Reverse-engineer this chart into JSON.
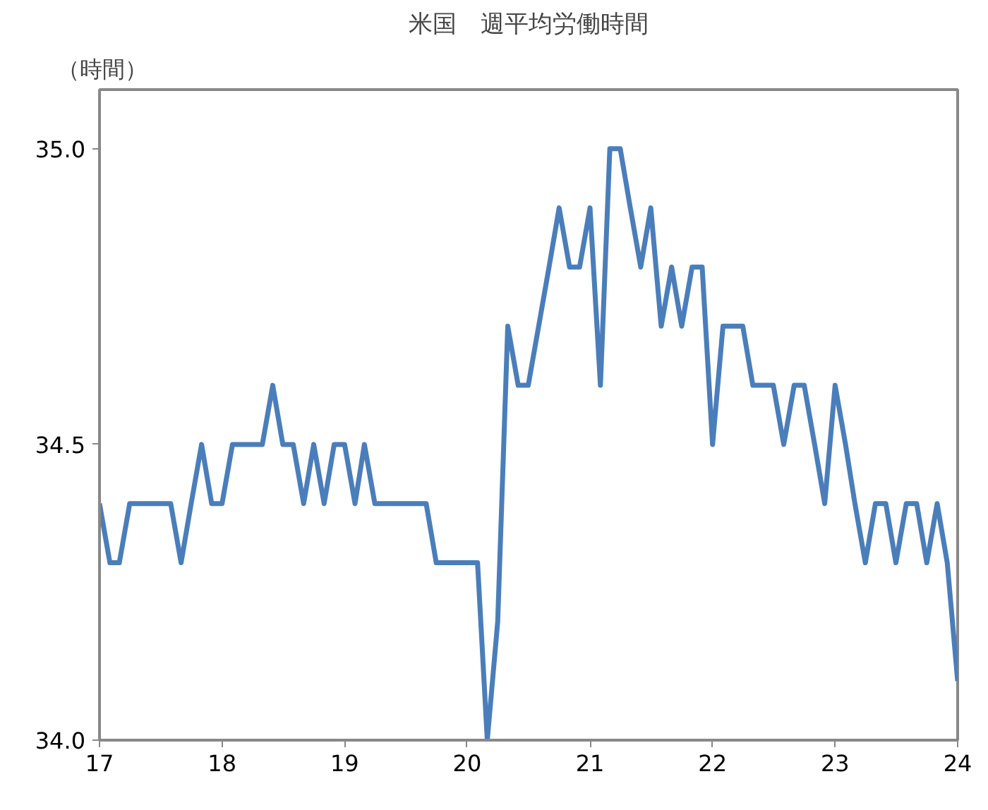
{
  "chart_data": {
    "type": "line",
    "title": "米国　週平均労働時間",
    "ylabel": "（時間）",
    "x": [
      "2017-01",
      "2017-02",
      "2017-03",
      "2017-04",
      "2017-05",
      "2017-06",
      "2017-07",
      "2017-08",
      "2017-09",
      "2017-10",
      "2017-11",
      "2017-12",
      "2018-01",
      "2018-02",
      "2018-03",
      "2018-04",
      "2018-05",
      "2018-06",
      "2018-07",
      "2018-08",
      "2018-09",
      "2018-10",
      "2018-11",
      "2018-12",
      "2019-01",
      "2019-02",
      "2019-03",
      "2019-04",
      "2019-05",
      "2019-06",
      "2019-07",
      "2019-08",
      "2019-09",
      "2019-10",
      "2019-11",
      "2019-12",
      "2020-01",
      "2020-02",
      "2020-03",
      "2020-04",
      "2020-05",
      "2020-06",
      "2020-07",
      "2020-08",
      "2020-09",
      "2020-10",
      "2020-11",
      "2020-12",
      "2021-01",
      "2021-02",
      "2021-03",
      "2021-04",
      "2021-05",
      "2021-06",
      "2021-07",
      "2021-08",
      "2021-09",
      "2021-10",
      "2021-11",
      "2021-12",
      "2022-01",
      "2022-02",
      "2022-03",
      "2022-04",
      "2022-05",
      "2022-06",
      "2022-07",
      "2022-08",
      "2022-09",
      "2022-10",
      "2022-11",
      "2022-12",
      "2023-01",
      "2023-02",
      "2023-03",
      "2023-04",
      "2023-05",
      "2023-06",
      "2023-07",
      "2023-08",
      "2023-09",
      "2023-10",
      "2023-11",
      "2023-12",
      "2024-01"
    ],
    "series": [
      {
        "color": "#4a7ebb",
        "values": [
          34.4,
          34.3,
          34.3,
          34.4,
          34.4,
          34.4,
          34.4,
          34.4,
          34.3,
          34.4,
          34.5,
          34.4,
          34.4,
          34.5,
          34.5,
          34.5,
          34.5,
          34.6,
          34.5,
          34.5,
          34.4,
          34.5,
          34.4,
          34.5,
          34.5,
          34.4,
          34.5,
          34.4,
          34.4,
          34.4,
          34.4,
          34.4,
          34.4,
          34.3,
          34.3,
          34.3,
          34.3,
          34.3,
          34.0,
          34.2,
          34.7,
          34.6,
          34.6,
          34.7,
          34.8,
          34.9,
          34.8,
          34.8,
          34.9,
          34.6,
          35.0,
          35.0,
          34.9,
          34.8,
          34.9,
          34.7,
          34.8,
          34.7,
          34.8,
          34.8,
          34.5,
          34.7,
          34.7,
          34.7,
          34.6,
          34.6,
          34.6,
          34.5,
          34.6,
          34.6,
          34.5,
          34.4,
          34.6,
          34.5,
          34.4,
          34.3,
          34.4,
          34.4,
          34.3,
          34.4,
          34.4,
          34.3,
          34.4,
          34.3,
          34.1
        ]
      }
    ],
    "xlim": [
      "2017-01",
      "2024-01"
    ],
    "xticks": [
      {
        "value": "2017-01",
        "label": "17"
      },
      {
        "value": "2018-01",
        "label": "18"
      },
      {
        "value": "2019-01",
        "label": "19"
      },
      {
        "value": "2020-01",
        "label": "20"
      },
      {
        "value": "2021-01",
        "label": "21"
      },
      {
        "value": "2022-01",
        "label": "22"
      },
      {
        "value": "2023-01",
        "label": "23"
      },
      {
        "value": "2024-01",
        "label": "24"
      }
    ],
    "ylim": [
      34.0,
      35.1
    ],
    "yticks": [
      {
        "value": 34.0,
        "label": "34.0"
      },
      {
        "value": 34.5,
        "label": "34.5"
      },
      {
        "value": 35.0,
        "label": "35.0"
      }
    ],
    "grid": false,
    "marker": "none",
    "line_style": "solid"
  }
}
